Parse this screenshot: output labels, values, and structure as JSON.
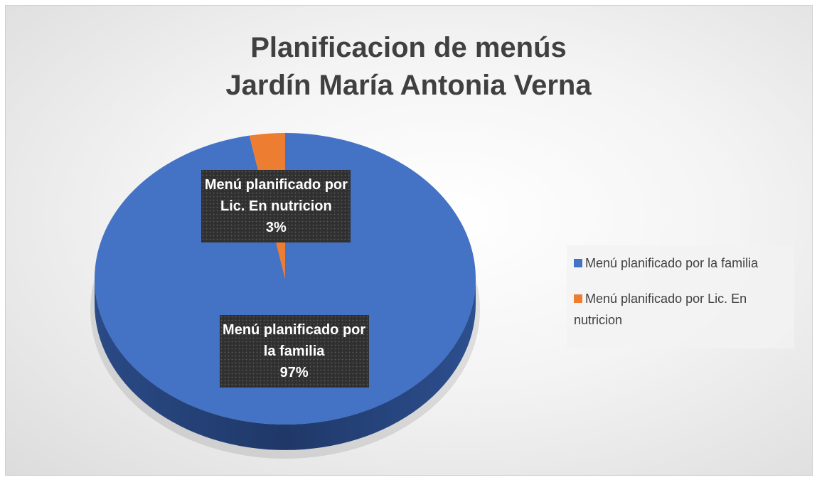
{
  "chart_data": {
    "type": "pie",
    "title": [
      "Planificacion de menús",
      "Jardín María Antonia Verna"
    ],
    "categories": [
      "Menú planificado por la familia",
      "Menú planificado por Lic. En nutricion"
    ],
    "values": [
      97,
      3
    ],
    "value_labels": [
      "97%",
      "3%"
    ],
    "colors": [
      "#4472c4",
      "#ed7d31"
    ],
    "legend": "right"
  }
}
